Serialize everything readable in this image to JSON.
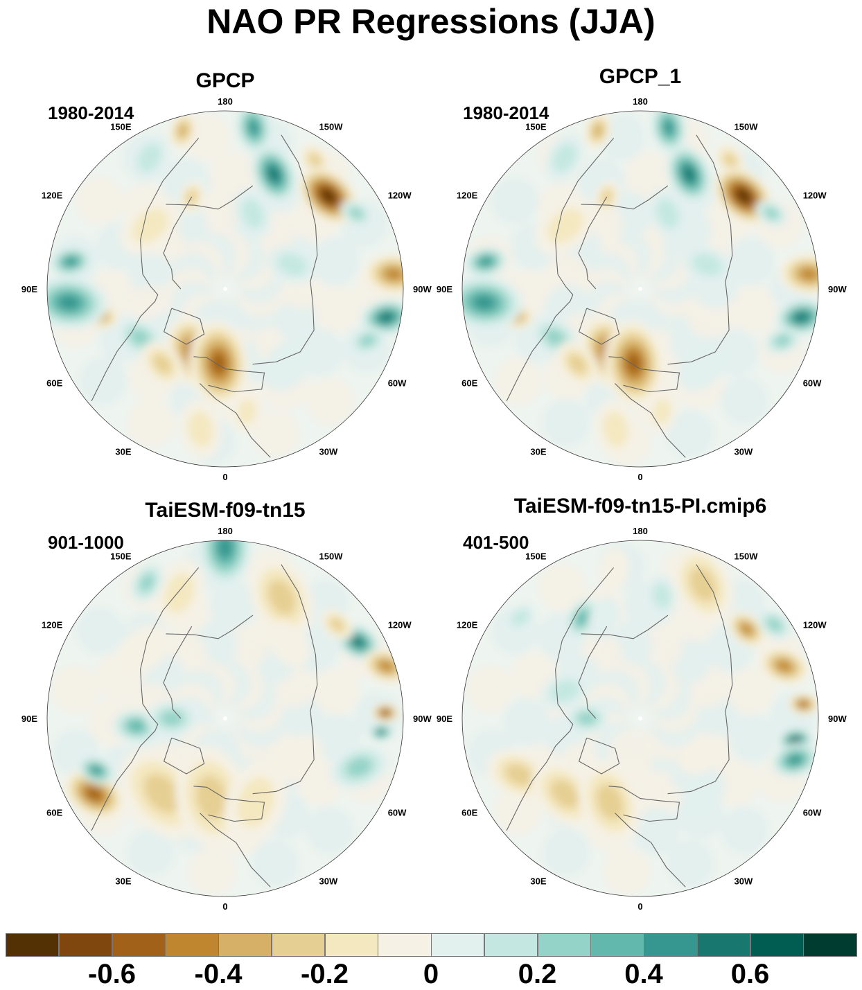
{
  "title": "NAO PR Regressions (JJA)",
  "panels": [
    {
      "name": "GPCP",
      "period": "1980-2014",
      "pattern": "obs"
    },
    {
      "name": "GPCP_1",
      "period": "1980-2014",
      "pattern": "obs"
    },
    {
      "name": "TaiESM-f09-tn15",
      "period": "901-1000",
      "pattern": "model1"
    },
    {
      "name": "TaiESM-f09-tn15-PI.cmip6",
      "period": "401-500",
      "pattern": "model2"
    }
  ],
  "longitude_labels": [
    "180",
    "150E",
    "120E",
    "90E",
    "60E",
    "30E",
    "0",
    "30W",
    "60W",
    "90W",
    "120W",
    "150W"
  ],
  "colorbar": {
    "colors": [
      "#543005",
      "#7f470e",
      "#a16118",
      "#c0862f",
      "#d6b066",
      "#e6cf93",
      "#f4e8c0",
      "#f5f1e5",
      "#e2f0ee",
      "#c4e8e1",
      "#94d3c7",
      "#62b8ac",
      "#35978f",
      "#18786f",
      "#015c52",
      "#003c30"
    ],
    "labels": [
      "-0.6",
      "-0.4",
      "-0.2",
      "0",
      "0.2",
      "0.4",
      "0.6"
    ]
  }
}
